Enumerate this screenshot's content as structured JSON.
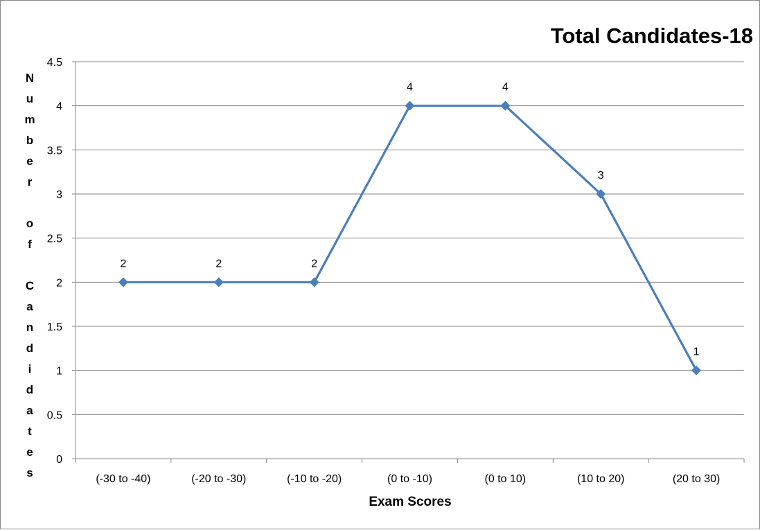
{
  "chart_data": {
    "type": "line",
    "title": "Total Candidates-18",
    "xlabel": "Exam Scores",
    "ylabel": "Number of Candidates",
    "categories": [
      "(-30 to -40)",
      "(-20 to -30)",
      "(-10 to -20)",
      "(0 to -10)",
      "(0 to 10)",
      "(10 to 20)",
      "(20 to 30)"
    ],
    "series": [
      {
        "values": [
          2,
          2,
          2,
          4,
          4,
          3,
          1
        ]
      }
    ],
    "ylim": [
      0,
      4.5
    ],
    "yticks": [
      "0",
      "0.5",
      "1",
      "1.5",
      "2",
      "2.5",
      "3",
      "3.5",
      "4",
      "4.5"
    ],
    "grid": true,
    "legend": "none",
    "data_labels": true,
    "marker": "diamond",
    "colors": {
      "series": "#4a7ebb",
      "grid": "#868686",
      "axis": "#868686",
      "background": "#ffffff"
    }
  }
}
